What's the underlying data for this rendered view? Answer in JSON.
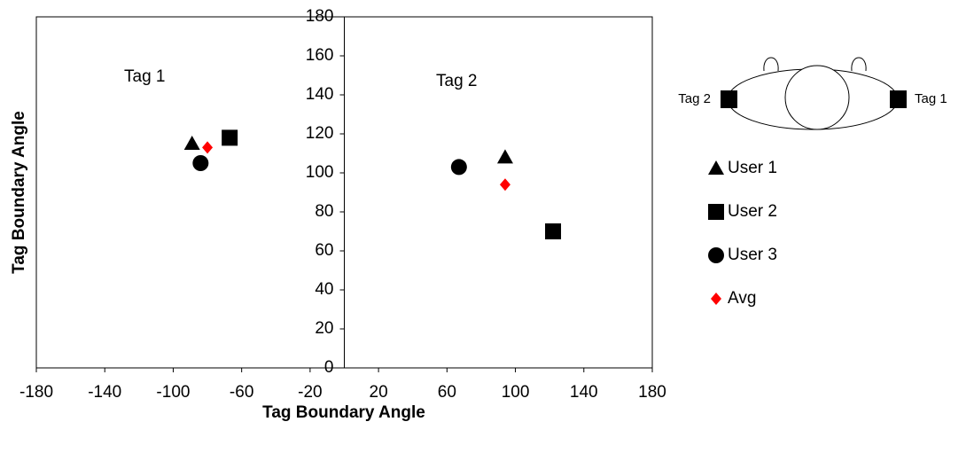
{
  "chart_data": {
    "type": "scatter",
    "xlabel": "Tag Boundary Angle",
    "ylabel": "Tag Boundary Angle",
    "xlim": [
      -180,
      180
    ],
    "xticks": [
      -180,
      -140,
      -100,
      -60,
      -20,
      20,
      60,
      100,
      140,
      180
    ],
    "ylim": [
      0,
      180
    ],
    "yticks": [
      0,
      20,
      40,
      60,
      80,
      100,
      120,
      140,
      160,
      180
    ],
    "annotations": [
      "Tag 1",
      "Tag 2"
    ],
    "diagram_labels": [
      "Tag 2",
      "Tag 1"
    ],
    "series": [
      {
        "name": "User 1",
        "marker": "triangle",
        "color": "#000000",
        "x": [
          -89,
          94
        ],
        "values": [
          115,
          108
        ]
      },
      {
        "name": "User 2",
        "marker": "square",
        "color": "#000000",
        "x": [
          -67,
          122
        ],
        "values": [
          118,
          70
        ]
      },
      {
        "name": "User 3",
        "marker": "circle",
        "color": "#000000",
        "x": [
          -84,
          67
        ],
        "values": [
          105,
          103
        ]
      },
      {
        "name": "Avg",
        "marker": "diamond",
        "color": "#ff0000",
        "x": [
          -80,
          94
        ],
        "values": [
          113,
          94
        ]
      }
    ]
  }
}
